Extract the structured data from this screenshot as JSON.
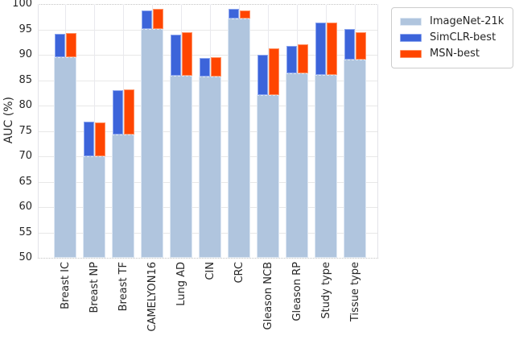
{
  "chart_data": {
    "type": "bar",
    "title": "",
    "ylabel": "AUC (%)",
    "xlabel": "",
    "ylim": [
      50,
      100
    ],
    "ytick_step": 5,
    "ytick_labels": [
      "50",
      "55",
      "60",
      "65",
      "70",
      "75",
      "80",
      "85",
      "90",
      "95",
      "100"
    ],
    "grid": true,
    "legend_position": "upper right",
    "categories": [
      "Breast IC",
      "Breast NP",
      "Breast TF",
      "CAMELYON16",
      "Lung AD",
      "CIN",
      "CRC",
      "Gleason NCB",
      "Gleason RP",
      "Study type",
      "Tissue type"
    ],
    "series": [
      {
        "name": "ImageNet-21k",
        "color": "#b0c5de",
        "edge_color": "#dde7f3",
        "values": [
          89.5,
          70.0,
          74.3,
          95.1,
          85.8,
          85.7,
          97.1,
          82.0,
          86.3,
          86.0,
          89.0
        ]
      },
      {
        "name": "SimCLR-best",
        "color": "#3c64da",
        "edge_color": "#8aa4ee",
        "values": [
          94.1,
          76.8,
          83.0,
          98.7,
          94.0,
          89.3,
          99.0,
          90.0,
          91.7,
          96.3,
          95.1
        ]
      },
      {
        "name": "MSN-best",
        "color": "#ff4500",
        "edge_color": "#ff9264",
        "values": [
          94.3,
          76.7,
          83.1,
          99.0,
          94.4,
          89.5,
          98.8,
          91.3,
          92.0,
          96.4,
          94.5
        ]
      }
    ],
    "overlay_note": "SimCLR-best and MSN-best bars are drawn side-by-side on top of the ImageNet-21k baseline bar"
  },
  "colors": {
    "grid": "#e8e8e8",
    "boundary_dotted": "#c3c3c3",
    "text": "#262626",
    "legend_border": "#cccccc",
    "background": "#ffffff"
  }
}
